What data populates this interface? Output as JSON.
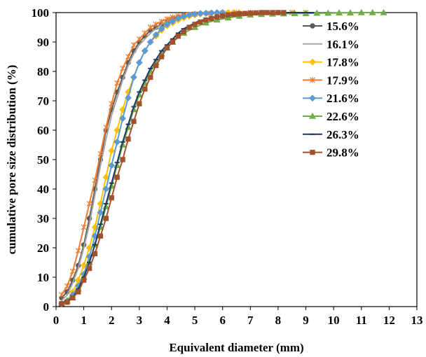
{
  "chart_data": {
    "type": "line",
    "title": "",
    "xlabel": "Equivalent diameter (mm)",
    "ylabel": "cumulative  pore size distribution  (%)",
    "xlim": [
      0,
      13
    ],
    "ylim": [
      0,
      100
    ],
    "xticks": [
      "0",
      "1",
      "2",
      "3",
      "4",
      "5",
      "6",
      "7",
      "8",
      "9",
      "10",
      "11",
      "12",
      "13"
    ],
    "yticks": [
      "0",
      "10",
      "20",
      "30",
      "40",
      "50",
      "60",
      "70",
      "80",
      "90",
      "100"
    ],
    "grid": false,
    "legend_position": "right",
    "series": [
      {
        "name": "15.6%",
        "color": "#595959",
        "marker": "circle",
        "x": [
          0.2,
          0.4,
          0.6,
          0.8,
          1.0,
          1.2,
          1.4,
          1.6,
          1.8,
          2.0,
          2.2,
          2.4,
          2.6,
          2.8,
          3.0,
          3.2,
          3.4,
          3.6,
          3.8,
          4.0,
          4.2,
          4.4,
          4.6,
          4.8,
          5.0,
          5.2,
          5.4,
          5.6,
          5.8,
          6.0,
          6.2,
          6.4
        ],
        "y": [
          3,
          5,
          9,
          14,
          21,
          30,
          40,
          50,
          60,
          67,
          73,
          78,
          83,
          87,
          90,
          92,
          94,
          95,
          96,
          97,
          98,
          98.5,
          99,
          99.3,
          99.5,
          99.7,
          99.8,
          99.9,
          100,
          100,
          100,
          100
        ]
      },
      {
        "name": "16.1%",
        "color": "#a6a6a6",
        "marker": "none",
        "x": [
          0.2,
          0.4,
          0.6,
          0.8,
          1.0,
          1.2,
          1.4,
          1.6,
          1.8,
          2.0,
          2.2,
          2.4,
          2.6,
          2.8,
          3.0,
          3.2,
          3.4,
          3.6,
          3.8,
          4.0,
          4.4,
          4.8,
          5.2,
          5.6,
          6.0,
          6.4,
          7.0,
          7.5
        ],
        "y": [
          2,
          4,
          8,
          13,
          20,
          28,
          38,
          48,
          57,
          65,
          71,
          77,
          82,
          86,
          89,
          91,
          93,
          94.5,
          96,
          97,
          98,
          99,
          99.5,
          99.8,
          100,
          100,
          100,
          100
        ]
      },
      {
        "name": "17.8%",
        "color": "#ffc000",
        "marker": "diamond",
        "x": [
          0.2,
          0.4,
          0.6,
          0.8,
          1.0,
          1.2,
          1.4,
          1.6,
          1.8,
          2.0,
          2.2,
          2.4,
          2.6,
          2.8,
          3.0,
          3.2,
          3.4,
          3.6,
          3.8,
          4.0,
          4.2,
          4.4,
          4.6,
          4.8,
          5.0,
          5.2,
          5.4,
          5.6,
          5.8,
          6.0,
          6.2,
          6.4,
          6.6
        ],
        "y": [
          1,
          2,
          5,
          9,
          14,
          20,
          27,
          35,
          44,
          53,
          60,
          67,
          73,
          78,
          83,
          87,
          90,
          92,
          94,
          95.5,
          96.5,
          97.5,
          98.2,
          98.8,
          99.2,
          99.5,
          99.7,
          99.8,
          99.9,
          100,
          100,
          100,
          100
        ]
      },
      {
        "name": "17.9%",
        "color": "#ed7d31",
        "marker": "asterisk",
        "x": [
          0.2,
          0.4,
          0.6,
          0.8,
          1.0,
          1.2,
          1.4,
          1.6,
          1.8,
          2.0,
          2.2,
          2.4,
          2.6,
          2.8,
          3.0,
          3.2,
          3.4,
          3.6,
          3.8,
          4.0,
          4.2,
          4.4,
          4.6,
          4.8,
          5.0,
          5.5,
          6.0,
          6.5,
          7.0,
          7.5,
          8.0,
          8.5,
          9.0
        ],
        "y": [
          4,
          7,
          12,
          19,
          27,
          35,
          43,
          52,
          61,
          69,
          76,
          81,
          85,
          89,
          91,
          93,
          95,
          96,
          97,
          97.8,
          98.4,
          98.8,
          99.1,
          99.3,
          99.5,
          99.7,
          99.8,
          99.9,
          100,
          100,
          100,
          100,
          100
        ]
      },
      {
        "name": "21.6%",
        "color": "#5b9bd5",
        "marker": "diamond",
        "x": [
          0.2,
          0.4,
          0.6,
          0.8,
          1.0,
          1.2,
          1.4,
          1.6,
          1.8,
          2.0,
          2.2,
          2.4,
          2.6,
          2.8,
          3.0,
          3.2,
          3.4,
          3.6,
          3.8,
          4.0,
          4.2,
          4.4,
          4.6,
          4.8,
          5.0,
          5.2,
          5.4,
          5.6,
          5.8,
          6.0
        ],
        "y": [
          1,
          2,
          4,
          7,
          11,
          17,
          24,
          32,
          40,
          48,
          56,
          64,
          71,
          78,
          83,
          87,
          90,
          92.5,
          94.5,
          96,
          97,
          98,
          98.7,
          99.2,
          99.5,
          99.7,
          99.8,
          99.9,
          100,
          100
        ]
      },
      {
        "name": "22.6%",
        "color": "#70ad47",
        "marker": "triangle",
        "x": [
          0.2,
          0.4,
          0.6,
          0.8,
          1.0,
          1.2,
          1.4,
          1.6,
          1.8,
          2.0,
          2.2,
          2.4,
          2.6,
          2.8,
          3.0,
          3.2,
          3.4,
          3.6,
          3.8,
          4.0,
          4.2,
          4.6,
          5.0,
          5.4,
          5.8,
          6.2,
          6.6,
          7.0,
          7.4,
          7.8,
          8.2,
          8.6,
          9.0,
          9.4,
          9.8,
          10.2,
          10.6,
          11.0,
          11.4,
          11.8
        ],
        "y": [
          1,
          2,
          3,
          6,
          10,
          15,
          21,
          27,
          34,
          41,
          48,
          55,
          61,
          67,
          72,
          76,
          80,
          83,
          86,
          88,
          90,
          93,
          95,
          96.5,
          97.5,
          98.2,
          98.8,
          99.2,
          99.4,
          99.5,
          99.6,
          99.7,
          99.7,
          99.8,
          99.8,
          99.9,
          99.9,
          100,
          100,
          100
        ]
      },
      {
        "name": "26.3%",
        "color": "#1f3864",
        "marker": "dash",
        "x": [
          0.2,
          0.4,
          0.6,
          0.8,
          1.0,
          1.2,
          1.4,
          1.6,
          1.8,
          2.0,
          2.2,
          2.4,
          2.6,
          2.8,
          3.0,
          3.2,
          3.4,
          3.6,
          3.8,
          4.0,
          4.2,
          4.4,
          4.6,
          4.8,
          5.0,
          5.2,
          5.6,
          6.0,
          6.4,
          6.8,
          7.2,
          7.6,
          8.0,
          8.4,
          8.8,
          9.2
        ],
        "y": [
          1,
          2,
          3,
          6,
          10,
          15,
          21,
          28,
          35,
          42,
          49,
          56,
          62,
          68,
          73,
          77,
          81,
          84,
          87,
          89,
          91,
          93,
          94.5,
          95.5,
          96.5,
          97.3,
          98.2,
          98.8,
          99.2,
          99.5,
          99.7,
          99.8,
          99.9,
          100,
          100,
          100
        ]
      },
      {
        "name": "29.8%",
        "color": "#a0522d",
        "marker": "square",
        "x": [
          0.2,
          0.4,
          0.6,
          0.8,
          1.0,
          1.2,
          1.4,
          1.6,
          1.8,
          2.0,
          2.2,
          2.4,
          2.6,
          2.8,
          3.0,
          3.2,
          3.4,
          3.6,
          3.8,
          4.0,
          4.2,
          4.4,
          4.6,
          4.8,
          5.0,
          5.2,
          5.4,
          5.6,
          5.8,
          6.0,
          6.2,
          6.4,
          6.6,
          6.8,
          7.0,
          7.2,
          7.4,
          7.6,
          7.8,
          8.0,
          8.2
        ],
        "y": [
          1,
          1.5,
          3,
          5,
          9,
          13,
          18,
          24,
          30,
          37,
          44,
          50,
          57,
          63,
          69,
          74,
          78,
          82,
          85,
          88,
          90,
          92,
          93.5,
          95,
          96,
          96.8,
          97.5,
          98,
          98.5,
          98.9,
          99.2,
          99.4,
          99.6,
          99.7,
          99.8,
          99.9,
          100,
          100,
          100,
          100,
          100
        ]
      }
    ]
  }
}
